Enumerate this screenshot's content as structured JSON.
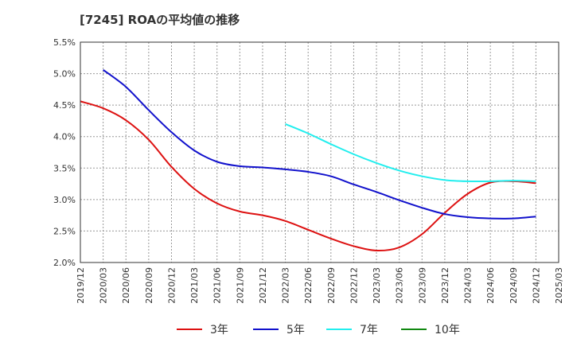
{
  "chart_data": {
    "type": "line",
    "title": "[7245]  ROAの平均値の推移",
    "xlabel": "",
    "ylabel": "",
    "grid": true,
    "legend_position": "bottom",
    "ylim": [
      2.0,
      5.5
    ],
    "y_ticks": [
      2.0,
      2.5,
      3.0,
      3.5,
      4.0,
      4.5,
      5.0,
      5.5
    ],
    "y_tick_labels": [
      "2.0%",
      "2.5%",
      "3.0%",
      "3.5%",
      "4.0%",
      "4.5%",
      "5.0%",
      "5.5%"
    ],
    "x_tick_labels": [
      "2019/12",
      "2020/03",
      "2020/06",
      "2020/09",
      "2020/12",
      "2021/03",
      "2021/06",
      "2021/09",
      "2021/12",
      "2022/03",
      "2022/06",
      "2022/09",
      "2022/12",
      "2023/03",
      "2023/06",
      "2023/09",
      "2023/12",
      "2024/03",
      "2024/06",
      "2024/09",
      "2024/12",
      "2025/03"
    ],
    "series": [
      {
        "name": "3年",
        "color": "#dd1111",
        "values": [
          4.56,
          4.45,
          4.26,
          3.95,
          3.52,
          3.17,
          2.94,
          2.81,
          2.75,
          2.66,
          2.52,
          2.38,
          2.26,
          2.19,
          2.24,
          2.45,
          2.79,
          3.09,
          3.27,
          3.29,
          3.26,
          null
        ]
      },
      {
        "name": "5年",
        "color": "#1111cc",
        "values": [
          null,
          5.06,
          4.79,
          4.42,
          4.07,
          3.78,
          3.6,
          3.53,
          3.51,
          3.48,
          3.44,
          3.37,
          3.24,
          3.12,
          2.99,
          2.87,
          2.77,
          2.72,
          2.7,
          2.7,
          2.73,
          null
        ]
      },
      {
        "name": "7年",
        "color": "#22eeee",
        "values": [
          null,
          null,
          null,
          null,
          null,
          null,
          null,
          null,
          null,
          4.2,
          4.05,
          3.88,
          3.72,
          3.58,
          3.46,
          3.37,
          3.31,
          3.29,
          3.29,
          3.3,
          3.29,
          null
        ]
      },
      {
        "name": "10年",
        "color": "#118811",
        "values": [
          null,
          null,
          null,
          null,
          null,
          null,
          null,
          null,
          null,
          null,
          null,
          null,
          null,
          null,
          null,
          null,
          null,
          null,
          null,
          null,
          null,
          null
        ]
      }
    ]
  }
}
